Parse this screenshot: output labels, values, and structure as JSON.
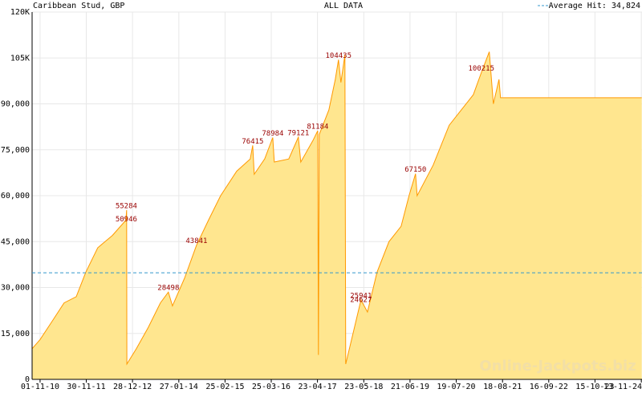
{
  "chart_data": {
    "type": "area",
    "title": "Caribbean Stud, GBP",
    "subtitle": "ALL DATA",
    "watermark": "Online-Jackpots.biz",
    "series": [
      {
        "name": "Caribbean Stud",
        "color": "#ff9900",
        "fill": "#ffe68f",
        "x": [
          "2010-08-25",
          "2010-11-01",
          "2011-02-12",
          "2011-05-25",
          "2011-09-05",
          "2011-11-26",
          "2012-03-07",
          "2012-07-09",
          "2012-11-02",
          "2012-11-08",
          "2012-11-10",
          "2013-01-30",
          "2013-05-12",
          "2013-08-23",
          "2013-10-30",
          "2013-12-04",
          "2014-03-16",
          "2014-06-27",
          "2014-10-07",
          "2015-01-18",
          "2015-06-04",
          "2015-09-28",
          "2015-10-19",
          "2015-11-01",
          "2016-01-29",
          "2016-04-07",
          "2016-04-20",
          "2016-08-21",
          "2016-11-11",
          "2016-12-02",
          "2017-03-15",
          "2017-04-25",
          "2017-05-01",
          "2017-05-08",
          "2017-07-29",
          "2017-09-22",
          "2017-10-19",
          "2017-11-09",
          "2017-12-13",
          "2017-12-20",
          "2018-02-20",
          "2018-04-29",
          "2018-06-23",
          "2018-09-13",
          "2018-12-24",
          "2019-04-06",
          "2019-06-13",
          "2019-08-07",
          "2019-08-21",
          "2020-01-05",
          "2020-05-20",
          "2020-08-31",
          "2020-12-12",
          "2021-02-18",
          "2021-04-27",
          "2021-06-01",
          "2021-07-19",
          "2021-08-01",
          "2024-11-17"
        ],
        "values": [
          10000,
          13000,
          19000,
          25000,
          27000,
          35000,
          43000,
          47000,
          52000,
          55284,
          5000,
          10000,
          17000,
          25000,
          28498,
          24000,
          33000,
          43841,
          52000,
          60000,
          68000,
          72000,
          76415,
          67000,
          72000,
          78984,
          71000,
          72000,
          79121,
          71000,
          78000,
          81184,
          8000,
          80000,
          88000,
          98000,
          104435,
          97000,
          106000,
          5000,
          15000,
          25941,
          22000,
          35000,
          45000,
          50000,
          60000,
          67150,
          60000,
          70000,
          83000,
          88000,
          93000,
          100215,
          107000,
          90000,
          98000,
          92000,
          92000
        ]
      }
    ],
    "annotations": [
      {
        "x": "2012-11-05",
        "value": 55284
      },
      {
        "x": "2012-11-05",
        "value": 50946
      },
      {
        "x": "2013-10-30",
        "value": 28498
      },
      {
        "x": "2014-06-27",
        "value": 43841
      },
      {
        "x": "2015-10-19",
        "value": 76415
      },
      {
        "x": "2016-04-07",
        "value": 78984
      },
      {
        "x": "2016-11-11",
        "value": 79121
      },
      {
        "x": "2017-04-25",
        "value": 81184
      },
      {
        "x": "2017-10-19",
        "value": 104435
      },
      {
        "x": "2018-04-29",
        "value": 24627
      },
      {
        "x": "2018-04-29",
        "value": 25941
      },
      {
        "x": "2019-08-07",
        "value": 67150
      },
      {
        "x": "2021-02-18",
        "value": 100215
      }
    ],
    "annotation_color": "#990000",
    "average_line": {
      "value": 34824,
      "label": "Average Hit: 34,824",
      "color": "#3399cc"
    },
    "xlim": [
      "2010-08-25",
      "2024-11-19"
    ],
    "ylim": [
      0,
      120000
    ],
    "yticks": [
      0,
      {
        "value": 15000,
        "label": "15,000"
      },
      {
        "value": 30000,
        "label": "30,000"
      },
      {
        "value": 45000,
        "label": "45,000"
      },
      {
        "value": 60000,
        "label": "60,000"
      },
      {
        "value": 75000,
        "label": "75,000"
      },
      {
        "value": 90000,
        "label": "90,000"
      },
      {
        "value": 105000,
        "label": "105K"
      },
      {
        "value": 120000,
        "label": "120K"
      }
    ],
    "xticks": [
      {
        "value": "2010-11-01",
        "label": "01-11-10"
      },
      {
        "value": "2011-11-30",
        "label": "30-11-11"
      },
      {
        "value": "2012-12-28",
        "label": "28-12-12"
      },
      {
        "value": "2014-01-27",
        "label": "27-01-14"
      },
      {
        "value": "2015-02-25",
        "label": "25-02-15"
      },
      {
        "value": "2016-03-25",
        "label": "25-03-16"
      },
      {
        "value": "2017-04-23",
        "label": "23-04-17"
      },
      {
        "value": "2018-05-23",
        "label": "23-05-18"
      },
      {
        "value": "2019-06-21",
        "label": "21-06-19"
      },
      {
        "value": "2020-07-19",
        "label": "19-07-20"
      },
      {
        "value": "2021-08-18",
        "label": "18-08-21"
      },
      {
        "value": "2022-09-16",
        "label": "16-09-22"
      },
      {
        "value": "2023-10-15",
        "label": "15-10-23"
      },
      {
        "value": "2024-11-13",
        "label": "13-11-24"
      }
    ],
    "grid": true
  }
}
